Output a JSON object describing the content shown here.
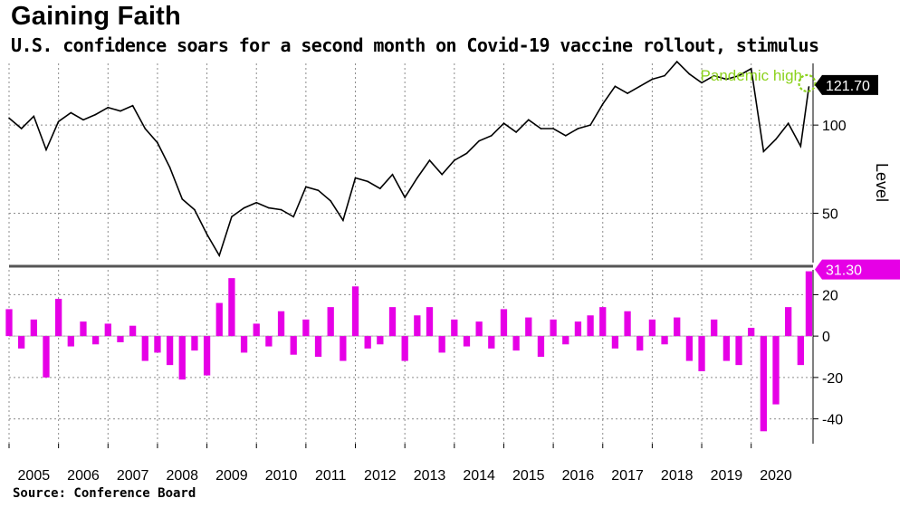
{
  "title": "Gaining Faith",
  "subtitle": "U.S. confidence soars for a second month on Covid-19 vaccine rollout, stimulus",
  "source": "Source: Conference Board",
  "colors": {
    "line": "#000000",
    "bars": "#e600e6",
    "annotation": "#8cd21e",
    "grid": "#8c8c8c",
    "divider": "#555555"
  },
  "chart_data": [
    {
      "type": "line",
      "ylabel": "Level",
      "ylim": [
        22,
        135
      ],
      "yticks": [
        "50",
        "100"
      ],
      "ytick_values": [
        50,
        100
      ],
      "last_value_label": "121.70",
      "annotation": "Pandemic high",
      "x": [
        "2005-01",
        "2005-04",
        "2005-07",
        "2005-10",
        "2006-01",
        "2006-04",
        "2006-07",
        "2006-10",
        "2007-01",
        "2007-04",
        "2007-07",
        "2007-10",
        "2008-01",
        "2008-04",
        "2008-07",
        "2008-10",
        "2009-01",
        "2009-04",
        "2009-07",
        "2009-10",
        "2010-01",
        "2010-04",
        "2010-07",
        "2010-10",
        "2011-01",
        "2011-04",
        "2011-07",
        "2011-10",
        "2012-01",
        "2012-04",
        "2012-07",
        "2012-10",
        "2013-01",
        "2013-04",
        "2013-07",
        "2013-10",
        "2014-01",
        "2014-04",
        "2014-07",
        "2014-10",
        "2015-01",
        "2015-04",
        "2015-07",
        "2015-10",
        "2016-01",
        "2016-04",
        "2016-07",
        "2016-10",
        "2017-01",
        "2017-04",
        "2017-07",
        "2017-10",
        "2018-01",
        "2018-04",
        "2018-07",
        "2018-10",
        "2019-01",
        "2019-04",
        "2019-07",
        "2019-10",
        "2020-01",
        "2020-04",
        "2020-07",
        "2020-10",
        "2021-01",
        "2021-03"
      ],
      "values": [
        104,
        98,
        105,
        86,
        102,
        107,
        103,
        106,
        110,
        108,
        111,
        98,
        90,
        76,
        58,
        52,
        38,
        26,
        48,
        53,
        56,
        53,
        52,
        48,
        65,
        63,
        57,
        46,
        70,
        68,
        64,
        72,
        59,
        70,
        80,
        72,
        80,
        84,
        91,
        94,
        101,
        96,
        103,
        98,
        98,
        94,
        98,
        100,
        112,
        122,
        118,
        122,
        126,
        128,
        136,
        129,
        124,
        128,
        126,
        128,
        132,
        85,
        92,
        101,
        88,
        121.7
      ]
    },
    {
      "type": "bar",
      "ylim": [
        -52,
        32
      ],
      "yticks": [
        "-40",
        "-20",
        "0",
        "20"
      ],
      "ytick_values": [
        -40,
        -20,
        0,
        20
      ],
      "last_value_label": "31.30",
      "x": [
        "2005-01",
        "2005-04",
        "2005-07",
        "2005-10",
        "2006-01",
        "2006-04",
        "2006-07",
        "2006-10",
        "2007-01",
        "2007-04",
        "2007-07",
        "2007-10",
        "2008-01",
        "2008-04",
        "2008-07",
        "2008-10",
        "2009-01",
        "2009-04",
        "2009-07",
        "2009-10",
        "2010-01",
        "2010-04",
        "2010-07",
        "2010-10",
        "2011-01",
        "2011-04",
        "2011-07",
        "2011-10",
        "2012-01",
        "2012-04",
        "2012-07",
        "2012-10",
        "2013-01",
        "2013-04",
        "2013-07",
        "2013-10",
        "2014-01",
        "2014-04",
        "2014-07",
        "2014-10",
        "2015-01",
        "2015-04",
        "2015-07",
        "2015-10",
        "2016-01",
        "2016-04",
        "2016-07",
        "2016-10",
        "2017-01",
        "2017-04",
        "2017-07",
        "2017-10",
        "2018-01",
        "2018-04",
        "2018-07",
        "2018-10",
        "2019-01",
        "2019-04",
        "2019-07",
        "2019-10",
        "2020-01",
        "2020-04",
        "2020-07",
        "2020-10",
        "2021-01",
        "2021-03"
      ],
      "values": [
        13,
        -6,
        8,
        -20,
        18,
        -5,
        7,
        -4,
        6,
        -3,
        5,
        -12,
        -8,
        -14,
        -21,
        -7,
        -19,
        16,
        28,
        -8,
        6,
        -5,
        12,
        -9,
        8,
        -10,
        14,
        -12,
        24,
        -6,
        -4,
        14,
        -12,
        10,
        14,
        -8,
        8,
        -5,
        7,
        -6,
        13,
        -7,
        9,
        -10,
        8,
        -4,
        7,
        10,
        14,
        -6,
        12,
        -7,
        8,
        -4,
        9,
        -12,
        -17,
        8,
        -12,
        -14,
        4,
        -46,
        -33,
        14,
        -14,
        31.3
      ]
    }
  ],
  "x_axis": {
    "years": [
      "2005",
      "2006",
      "2007",
      "2008",
      "2009",
      "2010",
      "2011",
      "2012",
      "2013",
      "2014",
      "2015",
      "2016",
      "2017",
      "2018",
      "2019",
      "2020"
    ]
  }
}
